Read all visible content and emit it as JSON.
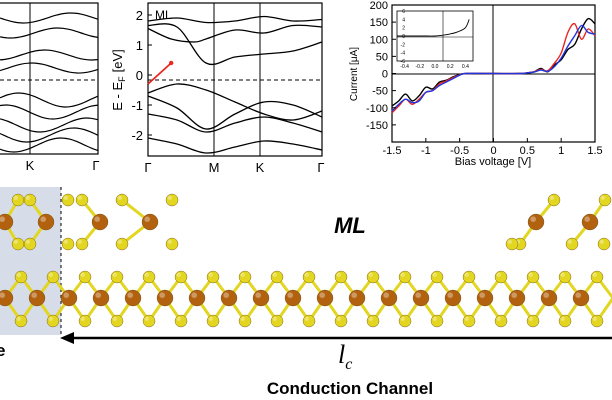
{
  "colors": {
    "axis": "#000000",
    "fermi_line": "#000000",
    "highlight_band": "#e8271f",
    "iv_black": "#000000",
    "iv_red": "#e8271f",
    "iv_blue": "#2035e0",
    "mo_atom": "#b2620f",
    "s_atom": "#e2d621",
    "electrode_shade": "#d6dde8"
  },
  "panel_left_partial": {
    "x_ticks": [
      "K",
      "Γ"
    ]
  },
  "panel_band": {
    "label": "ML",
    "ylabel": "E - E",
    "ylabel_sub": "F",
    "ylabel_unit": "[eV]",
    "y_ticks": [
      "-2",
      "-1",
      "0",
      "1",
      "2"
    ],
    "x_ticks": [
      "Γ",
      "M",
      "K",
      "Γ"
    ]
  },
  "panel_iv": {
    "ylabel": "Current [μA]",
    "xlabel": "Bias voltage [V]",
    "y_ticks": [
      "-150",
      "-100",
      "-50",
      "0",
      "50",
      "100",
      "150",
      "200"
    ],
    "x_ticks": [
      "-1.5",
      "-1",
      "-0.5",
      "0",
      "0.5",
      "1",
      "1.5"
    ],
    "inset": {
      "y_ticks": [
        "-6",
        "-4",
        "-2",
        "0",
        "2",
        "4",
        "6"
      ],
      "x_ticks": [
        "-0.4",
        "-0.2",
        "0.0",
        "0.2",
        "0.4"
      ]
    }
  },
  "structure": {
    "label_ml": "ML",
    "lc_symbol": "l",
    "lc_sub": "c",
    "caption": "Conduction Channel",
    "electrode_cut_letter": "e"
  },
  "chart_data": [
    {
      "type": "line",
      "title": "",
      "xlabel": "",
      "ylabel": "",
      "x_tick_labels": [
        "K",
        "Γ"
      ],
      "fermi_level": 0
    },
    {
      "type": "line",
      "title": "",
      "annotation": "ML",
      "ylabel": "E - E_F [eV]",
      "xlabel": "",
      "x_tick_labels": [
        "Γ",
        "M",
        "K",
        "Γ"
      ],
      "ylim": [
        -2.7,
        2.4
      ],
      "fermi_level": 0,
      "series": [
        {
          "values": [
            [
              0,
              -0.6
            ],
            [
              0.5,
              -0.3
            ],
            [
              1.0,
              -0.5
            ],
            [
              1.5,
              -0.9
            ],
            [
              2.0,
              -1.3
            ],
            [
              2.5,
              -1.5
            ],
            [
              3.0,
              -1.2
            ]
          ]
        },
        {
          "values": [
            [
              0,
              -0.7
            ],
            [
              0.5,
              -1.1
            ],
            [
              1.0,
              -1.8
            ],
            [
              1.5,
              -1.3
            ],
            [
              2.0,
              -0.9
            ],
            [
              2.5,
              -1.0
            ],
            [
              3.0,
              -1.4
            ]
          ]
        },
        {
          "values": [
            [
              0,
              -1.3
            ],
            [
              0.5,
              -1.5
            ],
            [
              1.0,
              -1.9
            ],
            [
              1.5,
              -1.6
            ],
            [
              2.0,
              -1.4
            ],
            [
              2.5,
              -1.6
            ],
            [
              3.0,
              -1.9
            ]
          ]
        },
        {
          "values": [
            [
              0,
              -2.1
            ],
            [
              0.5,
              -2.3
            ],
            [
              1.0,
              -2.6
            ],
            [
              1.5,
              -2.4
            ],
            [
              2.0,
              -2.2
            ],
            [
              2.5,
              -2.3
            ],
            [
              3.0,
              -2.5
            ]
          ]
        },
        {
          "values": [
            [
              0,
              1.55
            ],
            [
              0.4,
              1.2
            ],
            [
              0.8,
              1.1
            ],
            [
              1.0,
              1.2
            ],
            [
              1.5,
              1.5
            ],
            [
              2.0,
              1.4
            ],
            [
              2.5,
              1.65
            ],
            [
              3.0,
              1.6
            ]
          ]
        },
        {
          "values": [
            [
              0,
              1.8
            ],
            [
              0.5,
              1.9
            ],
            [
              1.0,
              1.75
            ],
            [
              1.5,
              1.8
            ],
            [
              2.0,
              1.95
            ],
            [
              2.5,
              1.8
            ],
            [
              3.0,
              1.85
            ]
          ]
        },
        {
          "values": [
            [
              0,
              1.65
            ],
            [
              0.5,
              1.6
            ],
            [
              1.0,
              0.4
            ],
            [
              1.5,
              0.6
            ],
            [
              2.0,
              0.7
            ],
            [
              2.5,
              0.8
            ],
            [
              3.0,
              1.1
            ]
          ]
        }
      ],
      "highlight": {
        "from": [
          0.0,
          -0.3
        ],
        "to": [
          0.4,
          0.4
        ]
      }
    },
    {
      "type": "line",
      "title": "",
      "xlabel": "Bias voltage [V]",
      "ylabel": "Current [μA]",
      "xlim": [
        -1.5,
        1.5
      ],
      "ylim": [
        -200,
        200
      ],
      "x": [
        -1.5,
        -1.4,
        -1.3,
        -1.2,
        -1.1,
        -1.0,
        -0.9,
        -0.8,
        -0.7,
        -0.6,
        -0.5,
        -0.4,
        0,
        0.4,
        0.5,
        0.6,
        0.7,
        0.8,
        0.9,
        1.0,
        1.1,
        1.2,
        1.3,
        1.4,
        1.5
      ],
      "series": [
        {
          "color": "#000000",
          "values": [
            -95,
            -80,
            -60,
            -80,
            -65,
            -40,
            -45,
            -25,
            -20,
            -10,
            -3,
            0,
            0,
            0,
            2,
            5,
            15,
            5,
            25,
            40,
            70,
            85,
            130,
            160,
            145
          ]
        },
        {
          "color": "#e8271f",
          "values": [
            -115,
            -95,
            -75,
            -90,
            -75,
            -55,
            -50,
            -30,
            -22,
            -12,
            -4,
            0,
            0,
            0,
            2,
            5,
            12,
            8,
            30,
            60,
            120,
            145,
            100,
            130,
            110
          ]
        },
        {
          "color": "#2035e0",
          "values": [
            -110,
            -90,
            -75,
            -85,
            -80,
            -55,
            -50,
            -35,
            -25,
            -15,
            -5,
            0,
            0,
            0,
            2,
            4,
            10,
            6,
            20,
            45,
            80,
            110,
            140,
            120,
            115
          ]
        }
      ],
      "inset": {
        "xlim": [
          -0.5,
          0.5
        ],
        "ylim": [
          -6,
          6
        ],
        "x": [
          -0.5,
          -0.4,
          -0.3,
          -0.2,
          -0.1,
          0,
          0.1,
          0.2,
          0.3,
          0.4,
          0.45
        ],
        "series": [
          {
            "color": "#000000",
            "values": [
              0,
              0,
              0,
              0,
              0,
              0,
              0.2,
              0.5,
              1.0,
              2.0,
              4.0
            ]
          }
        ]
      }
    }
  ]
}
